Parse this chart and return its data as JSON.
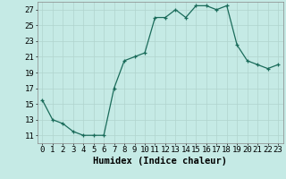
{
  "x": [
    0,
    1,
    2,
    3,
    4,
    5,
    6,
    7,
    8,
    9,
    10,
    11,
    12,
    13,
    14,
    15,
    16,
    17,
    18,
    19,
    20,
    21,
    22,
    23
  ],
  "y": [
    15.5,
    13.0,
    12.5,
    11.5,
    11.0,
    11.0,
    11.0,
    17.0,
    20.5,
    21.0,
    21.5,
    26.0,
    26.0,
    27.0,
    26.0,
    27.5,
    27.5,
    27.0,
    27.5,
    22.5,
    20.5,
    20.0,
    19.5,
    20.0
  ],
  "xlabel": "Humidex (Indice chaleur)",
  "ylabel": "",
  "bg_color": "#c5eae5",
  "line_color": "#1a6b5a",
  "marker_color": "#1a6b5a",
  "grid_color": "#b0d4ce",
  "ylim": [
    10,
    28
  ],
  "xlim": [
    -0.5,
    23.5
  ],
  "yticks": [
    11,
    13,
    15,
    17,
    19,
    21,
    23,
    25,
    27
  ],
  "xticks": [
    0,
    1,
    2,
    3,
    4,
    5,
    6,
    7,
    8,
    9,
    10,
    11,
    12,
    13,
    14,
    15,
    16,
    17,
    18,
    19,
    20,
    21,
    22,
    23
  ],
  "xtick_labels": [
    "0",
    "1",
    "2",
    "3",
    "4",
    "5",
    "6",
    "7",
    "8",
    "9",
    "10",
    "11",
    "12",
    "13",
    "14",
    "15",
    "16",
    "17",
    "18",
    "19",
    "20",
    "21",
    "22",
    "23"
  ],
  "tick_fontsize": 6.5,
  "xlabel_fontsize": 7.5
}
